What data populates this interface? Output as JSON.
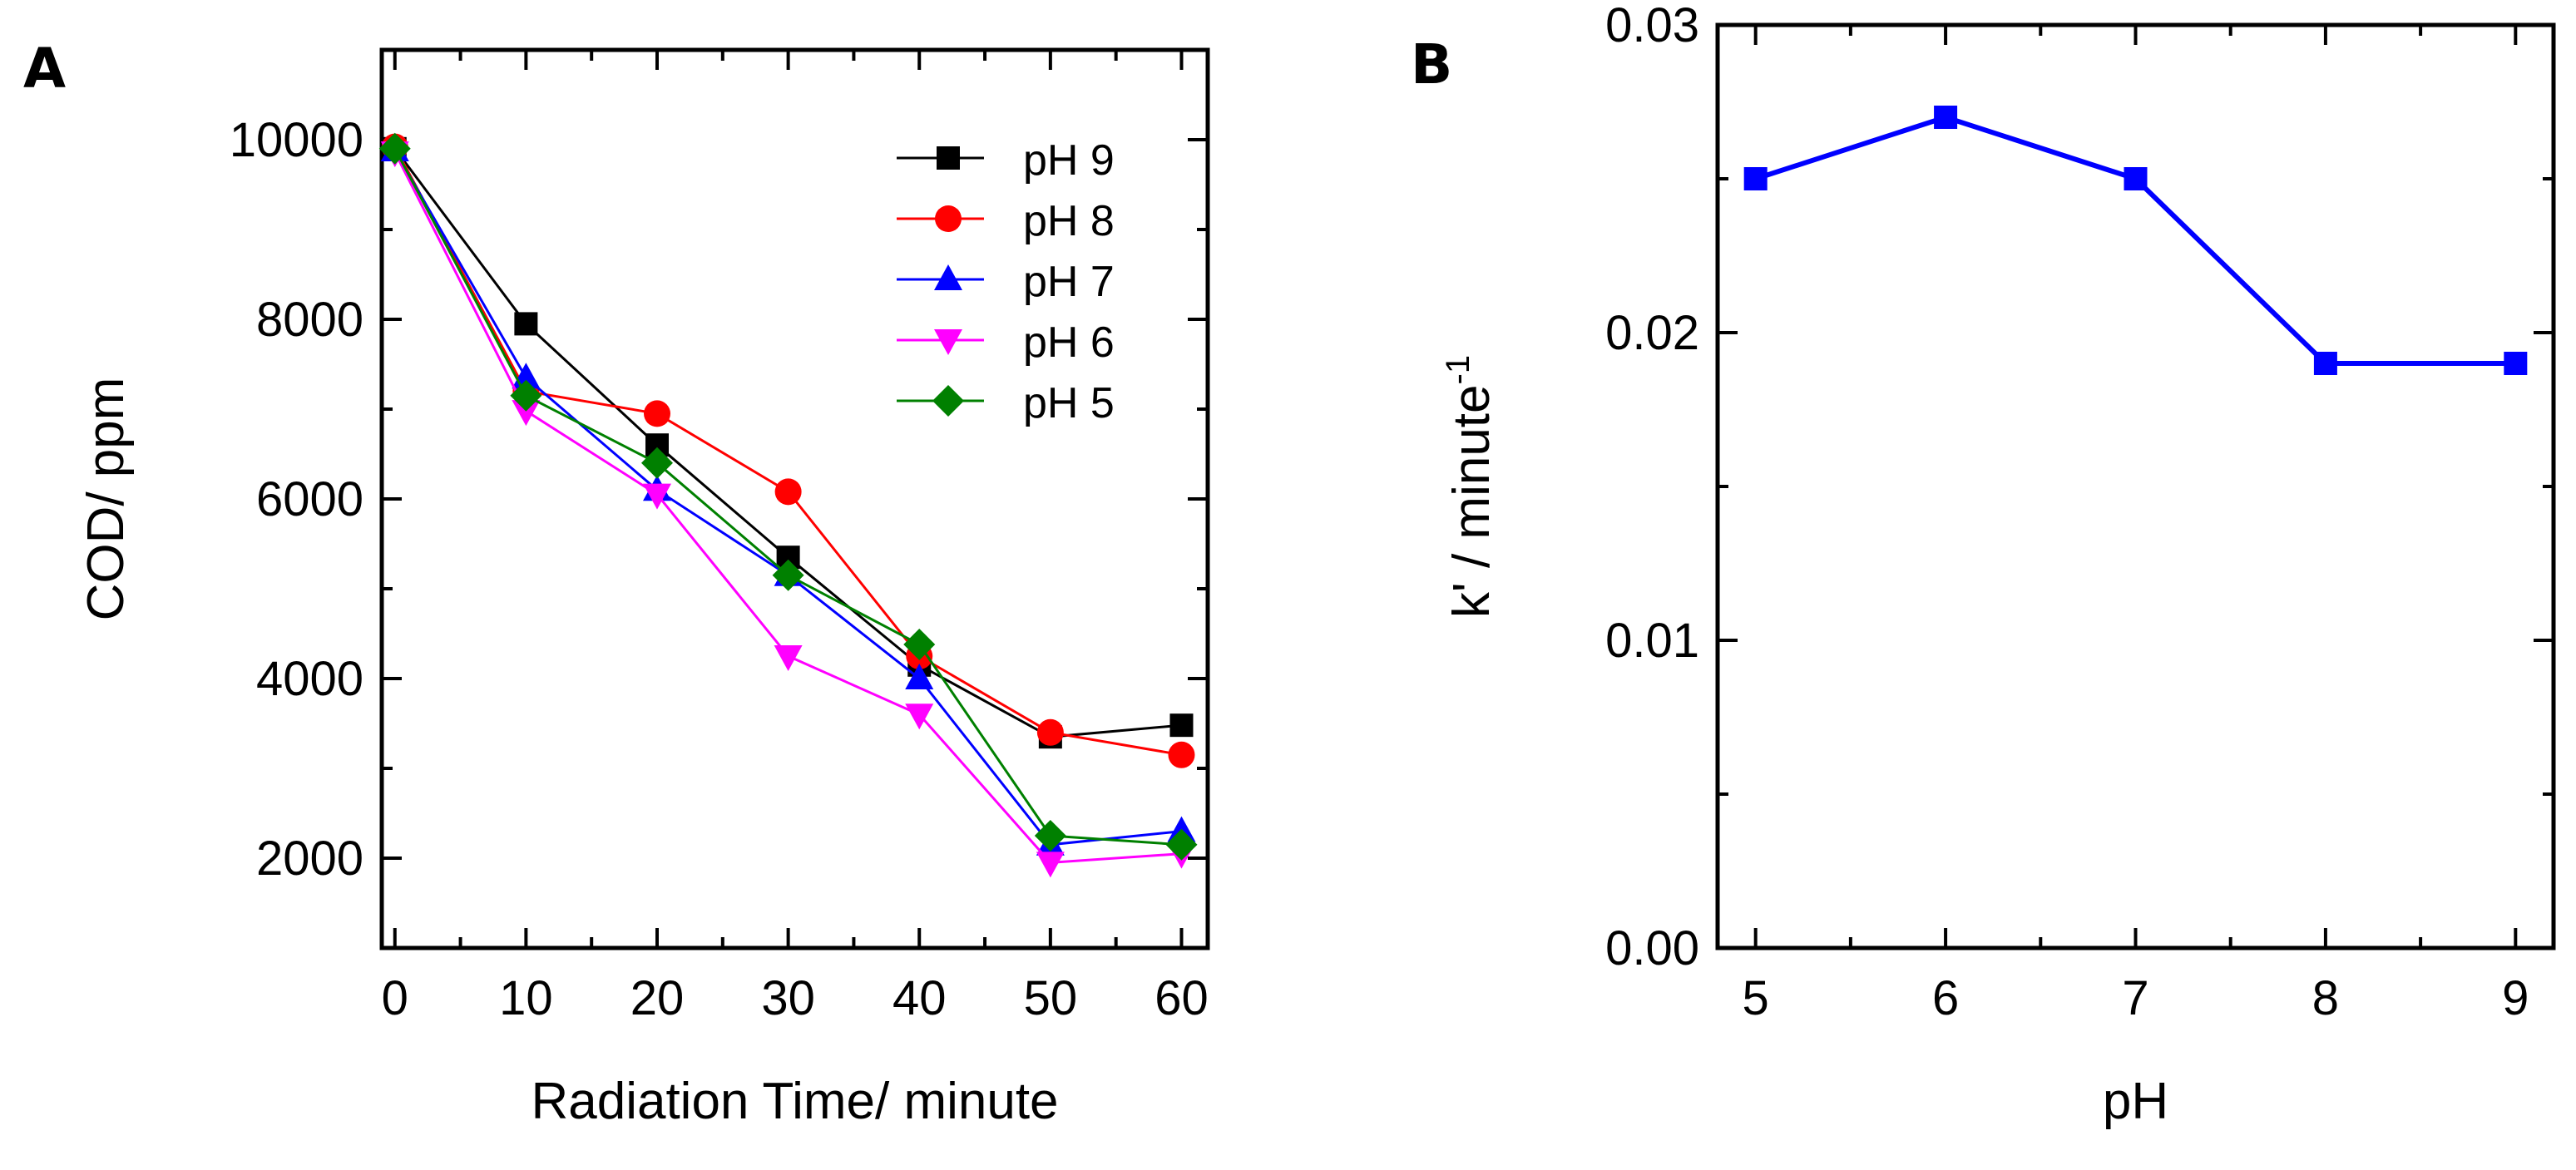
{
  "figure": {
    "panels": [
      "A",
      "B"
    ]
  },
  "chart_data": [
    {
      "panel": "A",
      "type": "line",
      "title": "",
      "xlabel": "Radiation Time/ minute",
      "ylabel": "COD/ ppm",
      "x": [
        0,
        10,
        20,
        30,
        40,
        50,
        60
      ],
      "xlim": [
        -1,
        62
      ],
      "ylim": [
        1000,
        11000
      ],
      "xticks": [
        0,
        10,
        20,
        30,
        40,
        50,
        60
      ],
      "yticks": [
        2000,
        4000,
        6000,
        8000,
        10000
      ],
      "legend_position": "top-right",
      "grid": false,
      "series": [
        {
          "name": "pH 9",
          "color": "#000000",
          "marker": "square",
          "values": [
            9900,
            7950,
            6600,
            5350,
            4150,
            3350,
            3480
          ]
        },
        {
          "name": "pH 8",
          "color": "#ff0000",
          "marker": "circle",
          "values": [
            9920,
            7200,
            6950,
            6080,
            4250,
            3400,
            3150
          ]
        },
        {
          "name": "pH 7",
          "color": "#0000ff",
          "marker": "triangle-up",
          "values": [
            9880,
            7350,
            6100,
            5150,
            4000,
            2150,
            2300
          ]
        },
        {
          "name": "pH 6",
          "color": "#ff00ff",
          "marker": "triangle-down",
          "values": [
            9860,
            6980,
            6050,
            4250,
            3600,
            1950,
            2050
          ]
        },
        {
          "name": "pH 5",
          "color": "#008000",
          "marker": "diamond",
          "values": [
            9900,
            7150,
            6400,
            5150,
            4380,
            2250,
            2150
          ]
        }
      ]
    },
    {
      "panel": "B",
      "type": "line",
      "title": "",
      "xlabel": "pH",
      "ylabel": "k' / minute",
      "ylabel_superscript": "-1",
      "x": [
        5,
        6,
        7,
        8,
        9
      ],
      "xlim": [
        4.8,
        9.2
      ],
      "ylim": [
        0,
        0.03
      ],
      "xticks": [
        5,
        6,
        7,
        8,
        9
      ],
      "yticks": [
        "0.00",
        "0.01",
        "0.02",
        "0.03"
      ],
      "grid": false,
      "series": [
        {
          "name": "k'",
          "color": "#0000ff",
          "marker": "square",
          "values": [
            0.025,
            0.027,
            0.025,
            0.019,
            0.019
          ]
        }
      ]
    }
  ]
}
